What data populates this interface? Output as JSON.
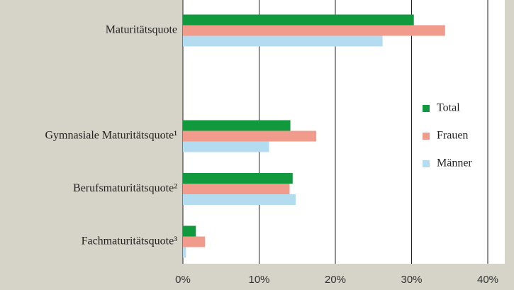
{
  "chart_data": {
    "type": "hbar",
    "categories": [
      "Maturitätsquote",
      null,
      "Gymnasiale Maturitätsquote¹",
      "Berufsmaturitätsquote²",
      "Fachmaturitätsquote³"
    ],
    "series": [
      {
        "name": "Total",
        "color": "#109a3d",
        "values": [
          30.3,
          null,
          14.1,
          14.4,
          1.7
        ]
      },
      {
        "name": "Frauen",
        "color": "#f19b8c",
        "values": [
          34.4,
          null,
          17.5,
          14.0,
          2.9
        ]
      },
      {
        "name": "Männer",
        "color": "#b4dcf1",
        "values": [
          26.2,
          null,
          11.3,
          14.8,
          0.4
        ]
      }
    ],
    "xlim": [
      0,
      40
    ],
    "xticks": [
      {
        "value": 0,
        "label": "0%"
      },
      {
        "value": 10,
        "label": "10%"
      },
      {
        "value": 20,
        "label": "20%"
      },
      {
        "value": 30,
        "label": "30%"
      },
      {
        "value": 40,
        "label": "40%"
      }
    ],
    "grid": true,
    "legend": "right"
  }
}
